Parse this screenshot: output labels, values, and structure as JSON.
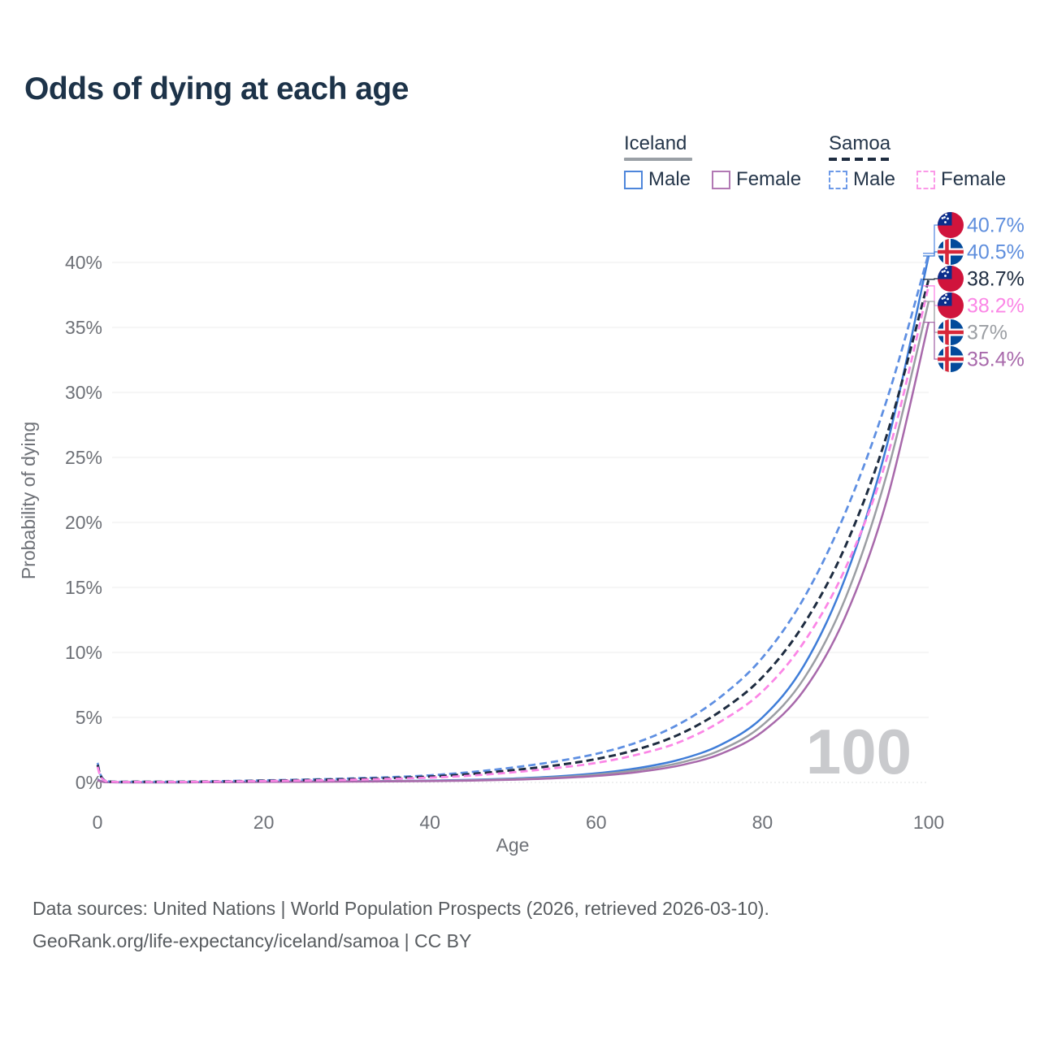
{
  "title": "Odds of dying at each age",
  "watermark_age": "100",
  "legend": {
    "groups": [
      {
        "country": "Iceland",
        "line_style": "solid",
        "underline_color": "#9aa0a6",
        "items": [
          {
            "label": "Male",
            "color": "#4e86db",
            "dashed": false
          },
          {
            "label": "Female",
            "color": "#b279b4",
            "dashed": false
          }
        ]
      },
      {
        "country": "Samoa",
        "line_style": "dashed",
        "underline_color": "#1e2c40",
        "items": [
          {
            "label": "Male",
            "color": "#6d9ae8",
            "dashed": true
          },
          {
            "label": "Female",
            "color": "#fb9ae8",
            "dashed": true
          }
        ]
      }
    ]
  },
  "flags": {
    "samoa_red": "#d0143c",
    "samoa_blue": "#0a2e8c",
    "iceland_blue": "#024a9b",
    "iceland_red": "#d7283a",
    "white": "#ffffff"
  },
  "footer": {
    "line1": "Data sources: United Nations | World Population Prospects (2026, retrieved 2026-03-10).",
    "line2": "GeoRank.org/life-expectancy/iceland/samoa | CC BY"
  },
  "chart_data": {
    "type": "line",
    "title": "Odds of dying at each age",
    "xlabel": "Age",
    "ylabel": "Probability of dying",
    "xlim": [
      0,
      100
    ],
    "ylim_percent": [
      0,
      42
    ],
    "grid": true,
    "x_ticks": [
      0,
      20,
      40,
      60,
      80,
      100
    ],
    "y_ticks_percent": [
      0,
      5,
      10,
      15,
      20,
      25,
      30,
      35,
      40
    ],
    "legend_position": "top-right",
    "x": [
      0,
      1,
      5,
      10,
      15,
      20,
      25,
      30,
      35,
      40,
      45,
      50,
      55,
      60,
      65,
      70,
      75,
      80,
      85,
      90,
      95,
      100
    ],
    "series": [
      {
        "id": "samoa-male",
        "name": "Samoa — Male",
        "country": "Samoa",
        "sex": "Male",
        "color": "#5e8fe2",
        "dashed": true,
        "width": 2.75,
        "flag": "samoa",
        "end_label": "40.7%",
        "label_color": "#5e8edd",
        "values_percent": [
          1.5,
          0.12,
          0.06,
          0.06,
          0.1,
          0.16,
          0.22,
          0.3,
          0.4,
          0.55,
          0.8,
          1.15,
          1.6,
          2.2,
          3.1,
          4.5,
          6.6,
          9.6,
          14.2,
          20.8,
          29.5,
          40.7
        ]
      },
      {
        "id": "iceland-male",
        "name": "Iceland — Male",
        "country": "Iceland",
        "sex": "Male",
        "color": "#3f7dd8",
        "dashed": false,
        "width": 2.5,
        "flag": "iceland",
        "end_label": "40.5%",
        "label_color": "#5e8edd",
        "values_percent": [
          0.25,
          0.03,
          0.01,
          0.01,
          0.03,
          0.06,
          0.08,
          0.09,
          0.11,
          0.14,
          0.2,
          0.3,
          0.45,
          0.7,
          1.1,
          1.75,
          2.9,
          5.0,
          9.0,
          15.8,
          26.0,
          40.5
        ]
      },
      {
        "id": "samoa-all",
        "name": "Samoa — Both sexes",
        "country": "Samoa",
        "sex": "All",
        "color": "#1e2c40",
        "dashed": true,
        "width": 3,
        "flag": "samoa",
        "end_label": "38.7%",
        "label_color": "#1e2c40",
        "values_percent": [
          1.35,
          0.1,
          0.05,
          0.05,
          0.08,
          0.13,
          0.18,
          0.25,
          0.33,
          0.45,
          0.65,
          0.95,
          1.3,
          1.8,
          2.55,
          3.7,
          5.5,
          8.1,
          12.2,
          18.2,
          26.8,
          38.7
        ]
      },
      {
        "id": "samoa-female",
        "name": "Samoa — Female",
        "country": "Samoa",
        "sex": "Female",
        "color": "#fb86e6",
        "dashed": true,
        "width": 2.75,
        "flag": "samoa",
        "end_label": "38.2%",
        "label_color": "#fb86e6",
        "values_percent": [
          1.2,
          0.09,
          0.04,
          0.04,
          0.07,
          0.11,
          0.15,
          0.2,
          0.27,
          0.37,
          0.53,
          0.78,
          1.1,
          1.5,
          2.15,
          3.1,
          4.7,
          7.0,
          10.8,
          16.5,
          25.0,
          38.2
        ]
      },
      {
        "id": "iceland-all",
        "name": "Iceland — Both sexes",
        "country": "Iceland",
        "sex": "All",
        "color": "#9b9ea3",
        "dashed": false,
        "width": 2.5,
        "flag": "iceland",
        "end_label": "37%",
        "label_color": "#9b9ea3",
        "values_percent": [
          0.22,
          0.02,
          0.01,
          0.01,
          0.02,
          0.05,
          0.06,
          0.08,
          0.1,
          0.12,
          0.17,
          0.26,
          0.38,
          0.6,
          0.95,
          1.5,
          2.5,
          4.4,
          8.0,
          14.2,
          23.8,
          37.0
        ]
      },
      {
        "id": "iceland-female",
        "name": "Iceland — Female",
        "country": "Iceland",
        "sex": "Female",
        "color": "#a869ab",
        "dashed": false,
        "width": 2.5,
        "flag": "iceland",
        "end_label": "35.4%",
        "label_color": "#a869ab",
        "values_percent": [
          0.2,
          0.02,
          0.01,
          0.01,
          0.02,
          0.04,
          0.05,
          0.06,
          0.08,
          0.1,
          0.14,
          0.21,
          0.32,
          0.5,
          0.8,
          1.3,
          2.2,
          3.9,
          7.1,
          12.8,
          21.8,
          35.4
        ]
      }
    ]
  }
}
